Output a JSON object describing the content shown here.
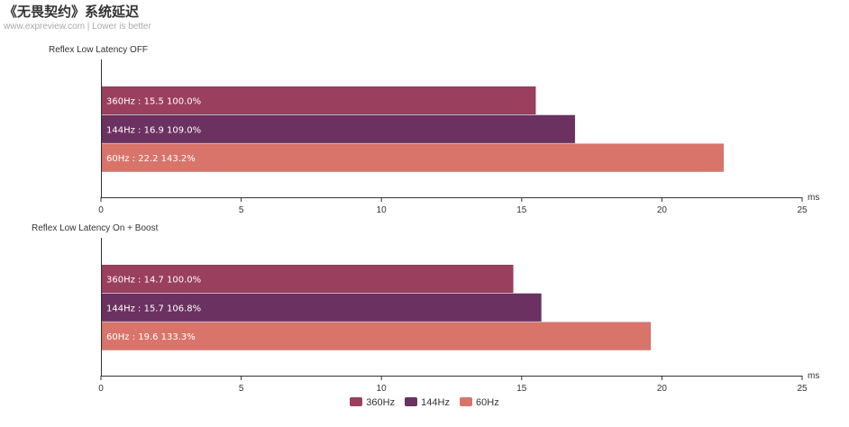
{
  "title": "《无畏契约》系统延迟",
  "subtitle": "www.expreview.com | Lower is better",
  "legend": [
    {
      "name": "360Hz",
      "color": "#9b3f5f"
    },
    {
      "name": "144Hz",
      "color": "#6b3160"
    },
    {
      "name": "60Hz",
      "color": "#d9746a"
    }
  ],
  "chart_data": [
    {
      "type": "bar",
      "title": "Reflex Low Latency OFF",
      "xlabel": "ms",
      "xlim": [
        0,
        25
      ],
      "ticks": [
        0,
        5,
        10,
        15,
        20,
        25
      ],
      "categories": [
        "360Hz",
        "144Hz",
        "60Hz"
      ],
      "values": [
        15.5,
        16.9,
        22.2
      ],
      "labels": [
        "360Hz : 15.5  100.0%",
        "144Hz : 16.9  109.0%",
        "60Hz : 22.2  143.2%"
      ]
    },
    {
      "type": "bar",
      "title": "Reflex Low Latency On + Boost",
      "xlabel": "ms",
      "xlim": [
        0,
        25
      ],
      "ticks": [
        0,
        5,
        10,
        15,
        20,
        25
      ],
      "categories": [
        "360Hz",
        "144Hz",
        "60Hz"
      ],
      "values": [
        14.7,
        15.7,
        19.6
      ],
      "labels": [
        "360Hz : 14.7  100.0%",
        "144Hz : 15.7  106.8%",
        "60Hz : 19.6  133.3%"
      ]
    }
  ]
}
